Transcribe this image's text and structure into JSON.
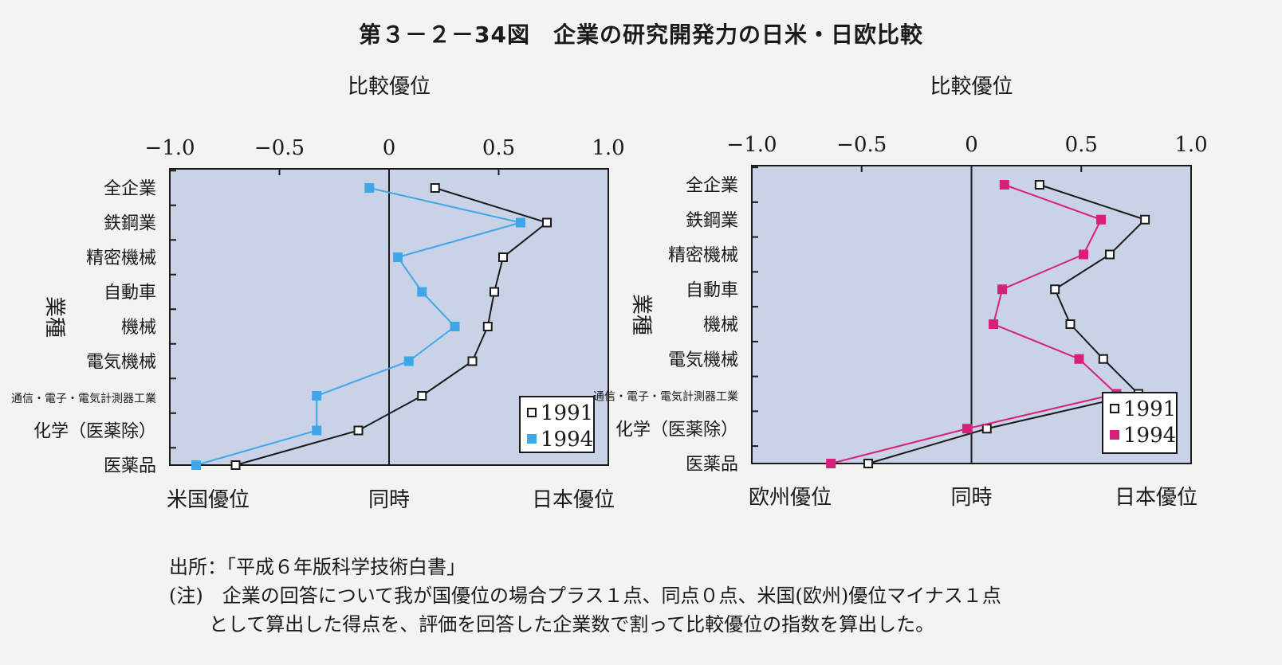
{
  "title": "第３－２－34図　企業の研究開発力の日米・日欧比較",
  "source": "出所：「平成６年版科学技術白書」",
  "note_line1": "(注)　企業の回答について我が国優位の場合プラス１点、同点０点、米国(欧州)優位マイナス１点",
  "note_line2": "として算出した得点を、評価を回答した企業数で割って比較優位の指数を算出した。",
  "colors": {
    "plot_bg": "#c9d2e6",
    "series1991": "#1a1a1a",
    "us1994": "#3fa7e8",
    "eu1994": "#d6207a"
  },
  "chart_data": [
    {
      "type": "line",
      "orientation": "horizontal",
      "top_label": "比較優位",
      "ylabel": "業種",
      "xlim": [
        -1.0,
        1.0
      ],
      "x_ticks": [
        "−1.0",
        "−0.5",
        "0",
        "0.5",
        "1.0"
      ],
      "bottom_labels": [
        "米国優位",
        "同時",
        "日本優位"
      ],
      "categories": [
        "全企業",
        "鉄鋼業",
        "精密機械",
        "自動車",
        "機械",
        "電気機械",
        "通信・電子・電気計測器工業",
        "化学（医薬除）",
        "医薬品"
      ],
      "series": [
        {
          "name": "1991",
          "values": [
            0.21,
            0.72,
            0.52,
            0.48,
            0.45,
            0.38,
            0.15,
            -0.14,
            -0.7
          ]
        },
        {
          "name": "1994",
          "values": [
            -0.09,
            0.6,
            0.04,
            0.15,
            0.3,
            0.09,
            -0.33,
            -0.33,
            -0.88
          ]
        }
      ],
      "legend_position": "bottom-right",
      "grid": false
    },
    {
      "type": "line",
      "orientation": "horizontal",
      "top_label": "比較優位",
      "ylabel": "業種",
      "xlim": [
        -1.0,
        1.0
      ],
      "x_ticks": [
        "−1.0",
        "−0.5",
        "0",
        "0.5",
        "1.0"
      ],
      "bottom_labels": [
        "欧州優位",
        "同時",
        "日本優位"
      ],
      "categories": [
        "全企業",
        "鉄鋼業",
        "精密機械",
        "自動車",
        "機械",
        "電気機械",
        "通信・電子・電気計測器工業",
        "化学（医薬除）",
        "医薬品"
      ],
      "series": [
        {
          "name": "1991",
          "values": [
            0.31,
            0.79,
            0.63,
            0.38,
            0.45,
            0.6,
            0.76,
            0.07,
            -0.47
          ]
        },
        {
          "name": "1994",
          "values": [
            0.15,
            0.59,
            0.51,
            0.14,
            0.1,
            0.49,
            0.66,
            -0.02,
            -0.64
          ]
        }
      ],
      "legend_position": "bottom-right",
      "grid": false
    }
  ]
}
